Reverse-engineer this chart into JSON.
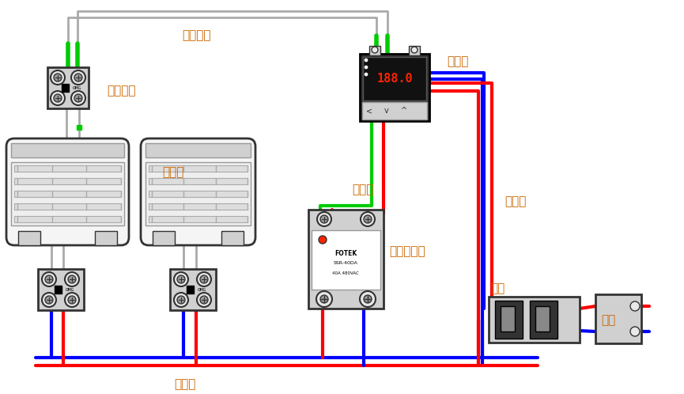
{
  "bg_color": "#ffffff",
  "labels": {
    "thermocouple_wire": "热电偶线",
    "terminal": "接线端子",
    "heater": "加热器",
    "control_wire": "控制线",
    "temp_controller": "温控表",
    "solid_relay": "固态继电器",
    "power_wire": "电源线",
    "breaker": "空开",
    "power_source": "电源"
  },
  "colors": {
    "green": "#00cc00",
    "blue": "#0000ff",
    "red": "#ff0000",
    "gray": "#aaaaaa",
    "black": "#000000",
    "white": "#ffffff",
    "light_gray": "#d0d0d0",
    "mid_gray": "#999999",
    "dark_gray": "#333333",
    "orange_text": "#cc6600",
    "component_bg": "#e8e8e8",
    "heater_fill": "#f5f5f5",
    "led_red": "#ff2200",
    "display_bg": "#111111"
  },
  "wire_lw": 3,
  "label_fontsize": 11,
  "label_color": "#cc6600"
}
